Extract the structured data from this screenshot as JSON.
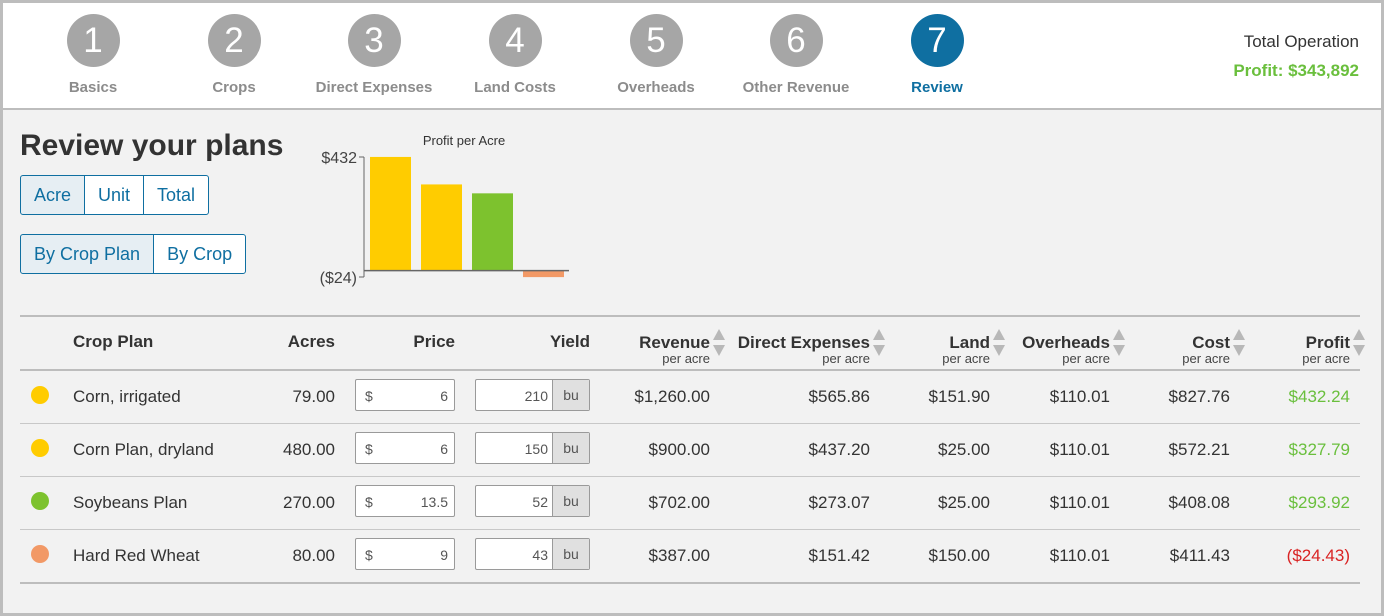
{
  "steps": [
    {
      "number": "1",
      "label": "Basics"
    },
    {
      "number": "2",
      "label": "Crops"
    },
    {
      "number": "3",
      "label": "Direct Expenses"
    },
    {
      "number": "4",
      "label": "Land Costs"
    },
    {
      "number": "5",
      "label": "Overheads"
    },
    {
      "number": "6",
      "label": "Other Revenue"
    },
    {
      "number": "7",
      "label": "Review"
    }
  ],
  "active_step": 7,
  "total_operation": {
    "label": "Total Operation",
    "profit": "Profit: $343,892"
  },
  "page_title": "Review your plans",
  "unit_toggle": {
    "options": [
      "Acre",
      "Unit",
      "Total"
    ],
    "selected": "Acre"
  },
  "group_toggle": {
    "options": [
      "By Crop Plan",
      "By Crop"
    ],
    "selected": "By Crop Plan"
  },
  "colors": {
    "accent": "#0f6fa1",
    "inactive_step": "#a6a6a6",
    "positive": "#6abf3d",
    "negative": "#d92323",
    "corn": "#ffcc00",
    "soy": "#7dc22e",
    "wheat": "#f29966"
  },
  "chart_data": {
    "type": "bar",
    "title": "Profit per Acre",
    "categories": [
      "Corn, irrigated",
      "Corn Plan, dryland",
      "Soybeans Plan",
      "Hard Red Wheat"
    ],
    "values": [
      432.24,
      327.79,
      293.92,
      -24.43
    ],
    "colors": [
      "#ffcc00",
      "#ffcc00",
      "#7dc22e",
      "#f29966"
    ],
    "ylim": [
      -24,
      432
    ],
    "ytick_labels": [
      "$432",
      "($24)"
    ],
    "xlabel": "",
    "ylabel": ""
  },
  "table": {
    "headers": {
      "crop_plan": "Crop Plan",
      "acres": "Acres",
      "price": "Price",
      "yield": "Yield",
      "revenue": "Revenue",
      "direct_expenses": "Direct Expenses",
      "land": "Land",
      "overheads": "Overheads",
      "cost": "Cost",
      "profit": "Profit",
      "per_acre": "per acre"
    },
    "currency_symbol": "$",
    "rows": [
      {
        "color": "#ffcc00",
        "name": "Corn, irrigated",
        "acres": "79.00",
        "price": "6",
        "yield": "210",
        "yield_unit": "bu",
        "revenue": "$1,260.00",
        "direct_expenses": "$565.86",
        "land": "$151.90",
        "overheads": "$110.01",
        "cost": "$827.76",
        "profit": "$432.24",
        "profit_positive": true
      },
      {
        "color": "#ffcc00",
        "name": "Corn Plan, dryland",
        "acres": "480.00",
        "price": "6",
        "yield": "150",
        "yield_unit": "bu",
        "revenue": "$900.00",
        "direct_expenses": "$437.20",
        "land": "$25.00",
        "overheads": "$110.01",
        "cost": "$572.21",
        "profit": "$327.79",
        "profit_positive": true
      },
      {
        "color": "#7dc22e",
        "name": "Soybeans Plan",
        "acres": "270.00",
        "price": "13.5",
        "yield": "52",
        "yield_unit": "bu",
        "revenue": "$702.00",
        "direct_expenses": "$273.07",
        "land": "$25.00",
        "overheads": "$110.01",
        "cost": "$408.08",
        "profit": "$293.92",
        "profit_positive": true
      },
      {
        "color": "#f29966",
        "name": "Hard Red Wheat",
        "acres": "80.00",
        "price": "9",
        "yield": "43",
        "yield_unit": "bu",
        "revenue": "$387.00",
        "direct_expenses": "$151.42",
        "land": "$150.00",
        "overheads": "$110.01",
        "cost": "$411.43",
        "profit": "($24.43)",
        "profit_positive": false
      }
    ]
  }
}
